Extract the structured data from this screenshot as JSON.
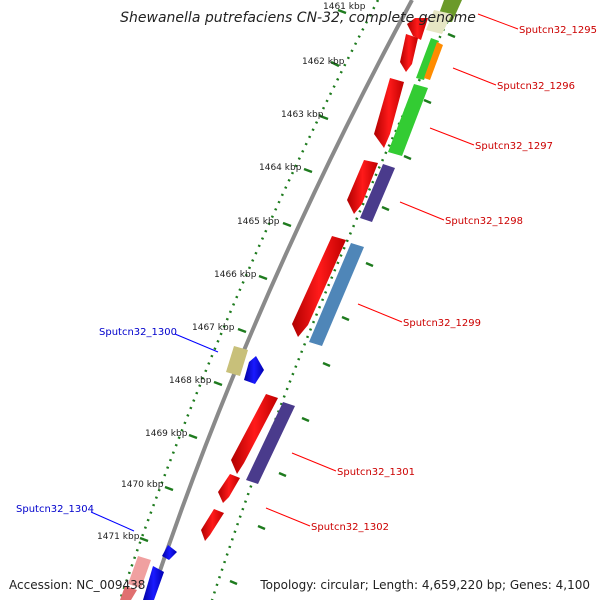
{
  "title": "Shewanella putrefaciens CN-32, complete genome",
  "accession": "Accession: NC_009438",
  "summary": "Topology: circular; Length: 4,659,220 bp; Genes: 4,100",
  "ticks": [
    "1461 kbp",
    "1462 kbp",
    "1463 kbp",
    "1464 kbp",
    "1465 kbp",
    "1466 kbp",
    "1467 kbp",
    "1468 kbp",
    "1469 kbp",
    "1470 kbp",
    "1471 kbp"
  ],
  "genes": [
    {
      "label": "Sputcn32_1295",
      "strand": "forward",
      "label_color": "#cc0000"
    },
    {
      "label": "Sputcn32_1296",
      "strand": "forward",
      "label_color": "#cc0000"
    },
    {
      "label": "Sputcn32_1297",
      "strand": "forward",
      "label_color": "#cc0000"
    },
    {
      "label": "Sputcn32_1298",
      "strand": "forward",
      "label_color": "#cc0000"
    },
    {
      "label": "Sputcn32_1299",
      "strand": "forward",
      "label_color": "#cc0000"
    },
    {
      "label": "Sputcn32_1300",
      "strand": "reverse",
      "label_color": "#0000cc"
    },
    {
      "label": "Sputcn32_1301",
      "strand": "forward",
      "label_color": "#cc0000"
    },
    {
      "label": "Sputcn32_1302",
      "strand": "forward",
      "label_color": "#cc0000"
    },
    {
      "label": "Sputcn32_1304",
      "strand": "reverse",
      "label_color": "#0000cc"
    }
  ],
  "colors": {
    "backbone": "#8a8a8a",
    "tick_dots": "#1e7b1e",
    "cds_forward": "#ff0000",
    "cds_reverse": "#0000ff",
    "orange": "#ff8c00",
    "green": "#33cc33",
    "slate": "#4a3b8c",
    "steel": "#4f86b8",
    "khaki": "#c8c07a"
  }
}
